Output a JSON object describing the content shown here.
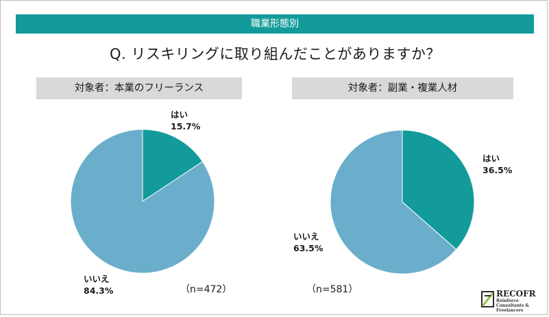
{
  "banner": {
    "title": "職業形態別"
  },
  "question": "Q. リスキリングに取り組んだことがありますか？",
  "colors": {
    "yes": "#139b9b",
    "no": "#6aaecb",
    "banner": "#139b9b",
    "panel": "#d9d9d9"
  },
  "chart_data": [
    {
      "type": "pie",
      "title": "対象者：本業のフリーランス",
      "n_label": "（n=472）",
      "series": [
        {
          "name": "はい",
          "value": 15.7,
          "label": "15.7%"
        },
        {
          "name": "いいえ",
          "value": 84.3,
          "label": "84.3%"
        }
      ]
    },
    {
      "type": "pie",
      "title": "対象者：副業・複業人材",
      "n_label": "（n=581）",
      "series": [
        {
          "name": "はい",
          "value": 36.5,
          "label": "36.5%"
        },
        {
          "name": "いいえ",
          "value": 63.5,
          "label": "63.5%"
        }
      ]
    }
  ],
  "logo": {
    "name": "RECOFR",
    "subtitle": "Reinforce Consultants & Freelancers"
  }
}
